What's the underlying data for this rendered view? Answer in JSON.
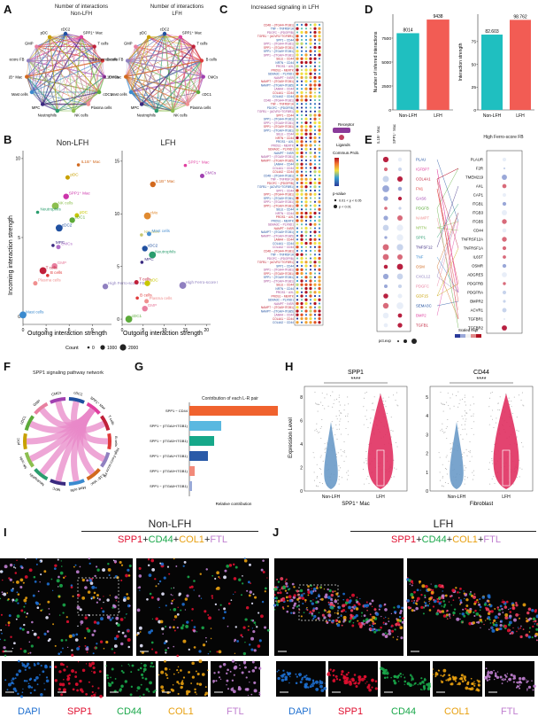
{
  "panel_letters": {
    "A": "A",
    "B": "B",
    "C": "C",
    "D": "D",
    "E": "E",
    "F": "F",
    "G": "G",
    "H": "H",
    "I": "I",
    "J": "J"
  },
  "panelA": {
    "title_nonlfh": "Number of interactions\nNon-LFH",
    "title_lfh": "Number of interactions\nLFH",
    "nodes": [
      "cDC2",
      "SPP1⁺ Mac",
      "T cells",
      "B cells",
      "CMCs",
      "cDC1",
      "Plasma cells",
      "NK cells",
      "Neutrophils",
      "MPC",
      "Mast cells",
      "IL1B⁺ Mac",
      "High Ferro-score FB",
      "GMP",
      "pDC"
    ]
  },
  "panelB": {
    "title_nonlfh": "Non-LFH",
    "title_lfh": "LFH",
    "ylabel": "Incoming interaction strength",
    "xlabel": "Outgoing interaction strength",
    "count_label": "Count",
    "count_values": [
      "0",
      "1000",
      "2000"
    ],
    "chart_data": [
      {
        "type": "scatter",
        "title": "Non-LFH",
        "xlabel": "Outgoing interaction strength",
        "ylabel": "Incoming interaction strength",
        "xlim": [
          0,
          11.5
        ],
        "ylim": [
          -0.5,
          10.5
        ],
        "xticks": [
          0,
          3,
          6,
          9
        ],
        "yticks": [
          0,
          5,
          10
        ],
        "points": [
          {
            "label": "IL1B⁺ Mac",
            "x": 7.2,
            "y": 9.6,
            "color": "#d2691e"
          },
          {
            "label": "pDC",
            "x": 5.8,
            "y": 8.8,
            "color": "#c8a000"
          },
          {
            "label": "SPP1⁺ Mac",
            "x": 5.6,
            "y": 7.6,
            "color": "#cc33aa"
          },
          {
            "label": "NK cells",
            "x": 4.2,
            "y": 7.0,
            "color": "#8cbf4f"
          },
          {
            "label": "Neutrophils",
            "x": 1.9,
            "y": 6.6,
            "color": "#2a9d6e"
          },
          {
            "label": "pDC",
            "x": 7.0,
            "y": 6.4,
            "color": "#c8c800"
          },
          {
            "label": "cDC1",
            "x": 6.4,
            "y": 6.1,
            "color": "#5caa3a"
          },
          {
            "label": "cDC2",
            "x": 4.7,
            "y": 5.6,
            "color": "#2050a0"
          },
          {
            "label": "MPC",
            "x": 3.9,
            "y": 4.5,
            "color": "#3a2a80"
          },
          {
            "label": "CMCs",
            "x": 4.6,
            "y": 4.4,
            "color": "#b070c8"
          },
          {
            "label": "GMP",
            "x": 4.1,
            "y": 3.2,
            "color": "#e880a0"
          },
          {
            "label": "T cells",
            "x": 2.6,
            "y": 2.9,
            "color": "#c0203a"
          },
          {
            "label": "B cells",
            "x": 3.2,
            "y": 2.6,
            "color": "#e03a3a"
          },
          {
            "label": "Plasma cells",
            "x": 1.6,
            "y": 2.1,
            "color": "#f09090"
          },
          {
            "label": "High Ferro-score FB",
            "x": 10.7,
            "y": 1.9,
            "color": "#9080c0"
          },
          {
            "label": "Mast cells",
            "x": 0.0,
            "y": 0.1,
            "color": "#3a8acf"
          }
        ]
      },
      {
        "type": "scatter",
        "title": "LFH",
        "xlabel": "Outgoing interaction strength",
        "ylabel": "Incoming interaction strength",
        "xlim": [
          0,
          21
        ],
        "ylim": [
          -0.5,
          16
        ],
        "xticks": [
          0,
          5,
          10,
          15,
          20
        ],
        "yticks": [
          0,
          5,
          10,
          15
        ],
        "points": [
          {
            "label": "SPP1⁺ Mac",
            "x": 15.0,
            "y": 14.6,
            "color": "#e040a0"
          },
          {
            "label": "CMCs",
            "x": 19.0,
            "y": 13.6,
            "color": "#a040b0"
          },
          {
            "label": "IL1B⁺ Mac",
            "x": 7.3,
            "y": 12.8,
            "color": "#d2691e"
          },
          {
            "label": "cMo",
            "x": 6.0,
            "y": 9.8,
            "color": "#e08a30"
          },
          {
            "label": "NK cells",
            "x": 4.6,
            "y": 8.0,
            "color": "#c8c870"
          },
          {
            "label": "Mast cells",
            "x": 6.4,
            "y": 8.1,
            "color": "#4a90d0"
          },
          {
            "label": "cDC2",
            "x": 5.4,
            "y": 6.7,
            "color": "#2050a0"
          },
          {
            "label": "Neutrophils",
            "x": 7.2,
            "y": 6.1,
            "color": "#2a9d6e"
          },
          {
            "label": "MPC",
            "x": 4.7,
            "y": 5.4,
            "color": "#3a2a80"
          },
          {
            "label": "T cells",
            "x": 3.4,
            "y": 3.5,
            "color": "#c0203a"
          },
          {
            "label": "pDC",
            "x": 6.0,
            "y": 3.4,
            "color": "#c8c800"
          },
          {
            "label": "High Ferro-score FB",
            "x": 14.4,
            "y": 3.2,
            "color": "#9080c0"
          },
          {
            "label": "B cells",
            "x": 3.6,
            "y": 2.0,
            "color": "#e03a3a"
          },
          {
            "label": "Plasma cells",
            "x": 5.8,
            "y": 1.7,
            "color": "#f09090"
          },
          {
            "label": "GMP",
            "x": 5.4,
            "y": 1.0,
            "color": "#e880a0"
          },
          {
            "label": "cDC1",
            "x": 1.6,
            "y": 0.0,
            "color": "#5caa3a"
          }
        ]
      }
    ]
  },
  "panelC": {
    "title": "Increased signaling in LFH",
    "rows": [
      "CD48 − (ITGA4+ITGB1)",
      "TNF − TNFRSF1A",
      "PDGFC − (PDGFRB)",
      "TGFB1 − (ACVR1+TGFBR1)",
      "SPP1 − CD44",
      "SPP1 − (ITGA4+ITGB1)",
      "SPP1 − (ITGA5+ITGB1)",
      "SPP1 − (ITGA9+ITGB1)",
      "SPP1 − (ITGAV+ITGB1)",
      "SELE − CD44",
      "NRTN − CD44",
      "PROS1 − AXL",
      "PROS1 − MERTK",
      "SEMA3C − PLXND1",
      "NAMPT − INSR",
      "NAMPT − (ITGA5+ITGB1)",
      "NAMPT − (ITGAV+ITGB5)",
      "LAMA4 − CD44",
      "COL4A1 − CD44",
      "COL4A2 − CD44"
    ],
    "legend_title": "Commun.Prob.",
    "pvalue_title": "p-value",
    "pvalue_items": [
      "0.01 < p < 0.05",
      "p < 0.01"
    ],
    "receptor_label": "Receptor",
    "ligands_label": "Ligands"
  },
  "panelD": {
    "chart_data": [
      {
        "type": "bar",
        "categories": [
          "Non-LFH",
          "LFH"
        ],
        "values": [
          8014,
          9438
        ],
        "ylabel": "Number of inferred interactions",
        "ylim": [
          0,
          10000
        ],
        "yticks": [
          0,
          2500,
          5000,
          7500
        ],
        "colors": [
          "#1fbfc0",
          "#f25c54"
        ]
      },
      {
        "type": "bar",
        "categories": [
          "Non-LFH",
          "LFH"
        ],
        "values": [
          82.603,
          98.762
        ],
        "ylabel": "Interaction strength",
        "ylim": [
          0,
          105
        ],
        "yticks": [
          0,
          25,
          50,
          75
        ],
        "colors": [
          "#1fbfc0",
          "#f25c54"
        ]
      }
    ],
    "value_labels": [
      "8014",
      "9438",
      "82.603",
      "98.762"
    ]
  },
  "panelE": {
    "left_title_1": "IL1B⁺ Mac",
    "left_title_2": "SPP1⁺ Mac",
    "right_title": "High Ferro-score FB",
    "ligands": [
      "PLAU",
      "IGFBP7",
      "COL4A1",
      "FN1",
      "GAS6",
      "PDGFB",
      "NAMPT",
      "NRTN",
      "SPP1",
      "TNFSF12",
      "TNF",
      "OSM",
      "CXCL12",
      "PDGFC",
      "GDF15",
      "SEMA3C",
      "BMP2",
      "TGFB1"
    ],
    "receptors": [
      "PLAUR",
      "F2R",
      "TMEM219",
      "AXL",
      "CAP1",
      "ITGB1",
      "ITGB3",
      "ITGB5",
      "CD44",
      "TNFRSF12A",
      "TNFRSF1A",
      "IL6ST",
      "OSMR",
      "ADGRE5",
      "PDGFRB",
      "PDGFRA",
      "BMPR2",
      "ACVR1",
      "TGFBR1",
      "TGFBR2"
    ],
    "scaled_expr_label": "Scaled expr",
    "pct_label": "pct.exp"
  },
  "panelF": {
    "title": "SPP1 signaling pathway network",
    "sectors": [
      "cDC2",
      "SPP1⁺ Mac",
      "T cells",
      "B cells",
      "High Ferro-score FB",
      "IL1B⁺ Mac",
      "Mast cells",
      "MPC",
      "Neutrophils",
      "NK cells",
      "pDC",
      "cDC1",
      "GMP",
      "CMCs"
    ]
  },
  "panelG": {
    "chart_data": {
      "type": "bar",
      "title": "Contribution of each L-R pair",
      "xlabel": "Relative contribution",
      "categories": [
        "SPP1 − CD44",
        "SPP1 − (ITGA4+ITGB1)",
        "SPP1 − (ITGA5+ITGB1)",
        "SPP1 − (ITGAV+ITGB1)",
        "SPP1 − (ITGA9+ITGB1)",
        "SPP1 − (ITGA8+ITGB1)"
      ],
      "values": [
        1.0,
        0.36,
        0.28,
        0.21,
        0.06,
        0.03
      ],
      "colors": [
        "#f0622e",
        "#5ab8e0",
        "#16a88a",
        "#2a5aa8",
        "#f28a7a",
        "#9aaad8"
      ]
    }
  },
  "panelH": {
    "left_title": "SPP1",
    "right_title": "CD44",
    "ylabel": "Expression Level",
    "left_xlabel": "SPP1⁺ Mac",
    "right_xlabel": "Fibroblast",
    "groups": [
      "Non-LFH",
      "LFH"
    ],
    "signif": "****",
    "left_yticks": [
      "0",
      "2",
      "4",
      "6",
      "8"
    ],
    "right_yticks": [
      "0",
      "1",
      "2",
      "3",
      "4",
      "5"
    ]
  },
  "panelI": {
    "title": "Non-LFH",
    "stain": {
      "spp1": "SPP1",
      "plus1": "+",
      "cd44": "CD44",
      "plus2": "+",
      "col1": "COL1",
      "plus3": "+",
      "ftl": "FTL"
    },
    "channels": [
      "DAPI",
      "SPP1",
      "CD44",
      "COL1",
      "FTL"
    ]
  },
  "panelJ": {
    "title": "LFH",
    "stain": {
      "spp1": "SPP1",
      "plus1": "+",
      "cd44": "CD44",
      "plus2": "+",
      "col1": "COL1",
      "plus3": "+",
      "ftl": "FTL"
    },
    "channels": [
      "DAPI",
      "SPP1",
      "CD44",
      "COL1",
      "FTL"
    ]
  },
  "colors": {
    "teal": "#1fbfc0",
    "salmon": "#f25c54",
    "dapi": "#1e6fd0",
    "spp1": "#e01030",
    "cd44": "#1aa84a",
    "col1": "#e8a010",
    "ftl": "#c080d0"
  }
}
